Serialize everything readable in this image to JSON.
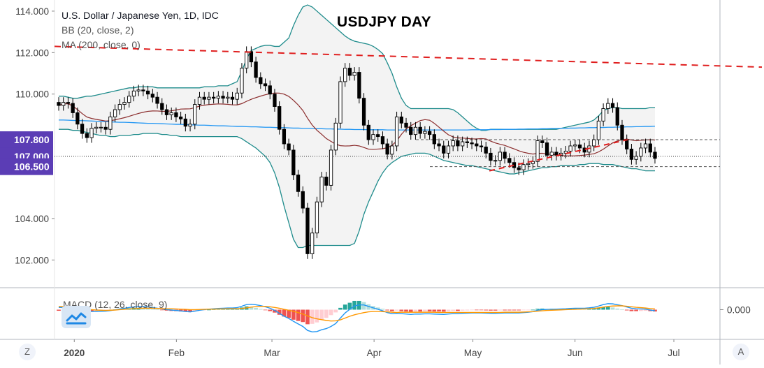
{
  "header": {
    "symbol_line": "U.S. Dollar / Japanese Yen, 1D, IDC",
    "bb_line": "BB (20, close, 2)",
    "ma_line": "MA (200, close, 0)",
    "title": "USDJPY DAY",
    "macd_line": "MACD (12, 26, close, 9)"
  },
  "buttons": {
    "left": "Z",
    "right": "A"
  },
  "colors": {
    "up_candle": "#ffffff",
    "down_candle": "#000000",
    "bb_band": "#1f8c8c",
    "bb_fill": "#f3f3f3",
    "bb_basis": "#8b2c2c",
    "ma200": "#2196f3",
    "trendline": "#e01e1e",
    "price_label_bg": "#5b3db5",
    "macd_line": "#2196f3",
    "signal_line": "#ff9800",
    "hist_up": "#26a69a",
    "hist_down": "#ef5350"
  },
  "chart_data": {
    "type": "candlestick",
    "title": "USDJPY DAY",
    "symbol": "U.S. Dollar / Japanese Yen, 1D, IDC",
    "ylim": [
      101,
      114.2
    ],
    "y_ticks": [
      "114.000",
      "112.000",
      "110.000",
      "107.800",
      "107.000",
      "106.500",
      "104.000",
      "102.000"
    ],
    "price_labels": [
      "107.800",
      "107.000",
      "106.500"
    ],
    "x_labels": [
      "2020",
      "Feb",
      "Mar",
      "Apr",
      "May",
      "Jun",
      "Jul"
    ],
    "x_start": "2019-12-26",
    "x_end": "2020-07-15",
    "x_label_dates": [
      "2020-01-01",
      "2020-02-01",
      "2020-03-01",
      "2020-04-01",
      "2020-05-01",
      "2020-06-01",
      "2020-07-01"
    ],
    "close": [
      109.45,
      109.6,
      109.55,
      109.1,
      108.55,
      108.1,
      107.9,
      108.35,
      108.4,
      108.4,
      108.3,
      108.9,
      109.25,
      109.5,
      109.6,
      109.9,
      110.15,
      110.2,
      110.15,
      110.0,
      109.85,
      109.55,
      109.25,
      109.0,
      109.1,
      108.9,
      108.8,
      108.45,
      108.55,
      109.5,
      109.85,
      109.75,
      109.85,
      109.8,
      109.9,
      109.8,
      109.85,
      109.75,
      110.05,
      111.25,
      112.05,
      111.55,
      110.8,
      110.5,
      110.4,
      110.0,
      109.4,
      108.3,
      107.6,
      107.3,
      106.1,
      105.3,
      104.5,
      102.3,
      103.3,
      104.8,
      106.0,
      105.6,
      107.3,
      108.6,
      110.6,
      111.25,
      110.9,
      111.05,
      109.8,
      108.5,
      107.8,
      108.05,
      107.95,
      107.6,
      107.1,
      107.5,
      108.9,
      108.6,
      108.4,
      108.05,
      108.4,
      108.1,
      108.2,
      108.05,
      107.6,
      107.5,
      107.15,
      107.5,
      107.75,
      107.5,
      107.7,
      107.65,
      107.6,
      107.5,
      107.45,
      107.15,
      106.8,
      106.8,
      107.2,
      106.9,
      106.7,
      106.45,
      106.35,
      106.6,
      106.65,
      106.75,
      107.75,
      107.65,
      107.05,
      107.2,
      107.05,
      107.15,
      107.25,
      107.5,
      107.55,
      107.4,
      107.2,
      107.5,
      107.8,
      108.7,
      109.3,
      109.55,
      109.35,
      108.5,
      107.8,
      107.35,
      106.85,
      107.0,
      107.4,
      107.6,
      107.2,
      106.9
    ],
    "bb_upper": [
      109.9,
      109.9,
      109.85,
      109.8,
      109.8,
      109.85,
      109.9,
      109.9,
      109.95,
      110.0,
      110.05,
      110.1,
      110.15,
      110.2,
      110.25,
      110.3,
      110.3,
      110.35,
      110.35,
      110.35,
      110.35,
      110.3,
      110.3,
      110.3,
      110.3,
      110.3,
      110.3,
      110.3,
      110.3,
      110.3,
      110.3,
      110.35,
      110.35,
      110.35,
      110.4,
      110.4,
      110.4,
      110.5,
      110.6,
      111.1,
      111.7,
      112.1,
      112.2,
      112.3,
      112.35,
      112.35,
      112.3,
      112.3,
      112.5,
      112.7,
      113.3,
      113.8,
      114.2,
      114.3,
      114.2,
      114.0,
      113.8,
      113.6,
      113.4,
      113.2,
      113.0,
      112.8,
      112.65,
      112.55,
      112.5,
      112.45,
      112.4,
      112.3,
      112.15,
      111.95,
      111.5,
      111.0,
      110.35,
      109.8,
      109.45,
      109.3,
      109.3,
      109.3,
      109.3,
      109.3,
      109.3,
      109.3,
      109.3,
      109.3,
      109.25,
      109.1,
      108.9,
      108.7,
      108.5,
      108.35,
      108.25,
      108.25,
      108.3,
      108.3,
      108.3,
      108.3,
      108.3,
      108.3,
      108.3,
      108.3,
      108.3,
      108.3,
      108.3,
      108.3,
      108.3,
      108.3,
      108.3,
      108.35,
      108.4,
      108.45,
      108.5,
      108.55,
      108.6,
      108.65,
      108.75,
      108.95,
      109.2,
      109.3,
      109.35,
      109.35,
      109.3,
      109.3,
      109.3,
      109.3,
      109.3,
      109.3,
      109.35,
      109.35
    ],
    "bb_lower": [
      108.3,
      108.3,
      108.3,
      108.25,
      108.25,
      108.2,
      108.15,
      108.1,
      108.05,
      108.0,
      108.0,
      107.95,
      107.95,
      108.0,
      108.0,
      108.0,
      108.05,
      108.05,
      108.1,
      108.1,
      108.1,
      108.1,
      108.05,
      108.05,
      108.0,
      108.0,
      107.95,
      107.95,
      107.95,
      107.95,
      107.95,
      107.95,
      107.95,
      107.95,
      107.95,
      107.95,
      107.95,
      107.95,
      107.95,
      107.85,
      107.7,
      107.55,
      107.4,
      107.2,
      107.0,
      106.7,
      106.2,
      105.5,
      104.6,
      103.8,
      103.0,
      102.6,
      102.6,
      102.7,
      102.7,
      102.7,
      102.7,
      102.7,
      102.7,
      102.7,
      102.7,
      102.7,
      102.7,
      102.8,
      103.4,
      104.2,
      104.8,
      105.3,
      105.8,
      106.2,
      106.5,
      106.7,
      106.85,
      107.0,
      107.05,
      107.1,
      107.15,
      107.15,
      107.15,
      107.1,
      107.0,
      106.9,
      106.8,
      106.75,
      106.7,
      106.65,
      106.6,
      106.55,
      106.55,
      106.5,
      106.45,
      106.4,
      106.35,
      106.3,
      106.25,
      106.2,
      106.15,
      106.15,
      106.2,
      106.25,
      106.3,
      106.35,
      106.4,
      106.45,
      106.45,
      106.5,
      106.5,
      106.55,
      106.55,
      106.55,
      106.55,
      106.6,
      106.6,
      106.65,
      106.65,
      106.65,
      106.6,
      106.6,
      106.6,
      106.55,
      106.5,
      106.45,
      106.4,
      106.4,
      106.35,
      106.3,
      106.3,
      106.3
    ],
    "ma200": [
      108.75,
      108.75,
      108.74,
      108.73,
      108.72,
      108.72,
      108.71,
      108.7,
      108.69,
      108.68,
      108.67,
      108.66,
      108.65,
      108.64,
      108.64,
      108.63,
      108.62,
      108.61,
      108.6,
      108.59,
      108.59,
      108.58,
      108.57,
      108.56,
      108.55,
      108.54,
      108.54,
      108.53,
      108.52,
      108.51,
      108.5,
      108.5,
      108.49,
      108.48,
      108.47,
      108.47,
      108.46,
      108.45,
      108.44,
      108.44,
      108.43,
      108.42,
      108.42,
      108.41,
      108.4,
      108.4,
      108.39,
      108.38,
      108.38,
      108.37,
      108.36,
      108.36,
      108.35,
      108.35,
      108.34,
      108.33,
      108.33,
      108.32,
      108.32,
      108.31,
      108.31,
      108.3,
      108.3,
      108.29,
      108.29,
      108.29,
      108.28,
      108.28,
      108.28,
      108.28,
      108.27,
      108.27,
      108.27,
      108.27,
      108.27,
      108.27,
      108.27,
      108.27,
      108.27,
      108.27,
      108.27,
      108.27,
      108.27,
      108.27,
      108.27,
      108.27,
      108.27,
      108.27,
      108.28,
      108.28,
      108.28,
      108.28,
      108.29,
      108.29,
      108.29,
      108.3,
      108.3,
      108.3,
      108.31,
      108.31,
      108.32,
      108.32,
      108.32,
      108.33,
      108.33,
      108.34,
      108.34,
      108.35,
      108.35,
      108.36,
      108.36,
      108.37,
      108.37,
      108.38,
      108.38,
      108.39,
      108.39,
      108.4,
      108.4,
      108.41,
      108.41,
      108.42,
      108.42,
      108.43,
      108.43,
      108.44,
      108.44,
      108.45
    ],
    "trendline_down": {
      "from": [
        "2019-12-26",
        112.3
      ],
      "to": [
        "2020-07-15",
        111.3
      ]
    },
    "trendline_up": {
      "from": [
        "2020-05-06",
        106.3
      ],
      "to": [
        "2020-06-17",
        107.8
      ]
    },
    "levels": [
      107.8,
      107.0,
      106.5
    ],
    "macd": {
      "label": "MACD (12, 26, close, 9)",
      "y_tick": "0.000",
      "ylim": [
        -1.4,
        0.9
      ],
      "histogram": [
        -0.06,
        -0.05,
        -0.04,
        -0.03,
        -0.05,
        -0.08,
        -0.1,
        -0.1,
        -0.08,
        -0.06,
        -0.04,
        -0.02,
        0.01,
        0.04,
        0.06,
        0.08,
        0.1,
        0.1,
        0.09,
        0.07,
        0.04,
        0.01,
        -0.02,
        -0.05,
        -0.07,
        -0.08,
        -0.1,
        -0.12,
        -0.12,
        -0.08,
        -0.04,
        -0.02,
        0.0,
        0.02,
        0.03,
        0.04,
        0.04,
        0.04,
        0.06,
        0.12,
        0.18,
        0.16,
        0.1,
        0.04,
        -0.02,
        -0.08,
        -0.16,
        -0.28,
        -0.38,
        -0.45,
        -0.55,
        -0.62,
        -0.68,
        -0.8,
        -0.78,
        -0.7,
        -0.55,
        -0.45,
        -0.3,
        -0.15,
        0.1,
        0.28,
        0.38,
        0.48,
        0.48,
        0.42,
        0.3,
        0.2,
        0.12,
        0.05,
        -0.04,
        -0.08,
        -0.05,
        -0.08,
        -0.1,
        -0.12,
        -0.1,
        -0.1,
        -0.09,
        -0.09,
        -0.1,
        -0.1,
        -0.11,
        -0.09,
        -0.07,
        -0.07,
        -0.05,
        -0.04,
        -0.03,
        -0.03,
        -0.03,
        -0.04,
        -0.05,
        -0.05,
        -0.04,
        -0.04,
        -0.04,
        -0.04,
        -0.04,
        -0.03,
        -0.02,
        0.0,
        0.05,
        0.06,
        0.05,
        0.05,
        0.05,
        0.05,
        0.05,
        0.06,
        0.06,
        0.05,
        0.04,
        0.05,
        0.06,
        0.1,
        0.14,
        0.15,
        0.12,
        0.06,
        0.01,
        -0.04,
        -0.08,
        -0.08,
        -0.07,
        -0.06,
        -0.08,
        -0.1
      ],
      "macd_line": [
        0.12,
        0.12,
        0.11,
        0.09,
        0.05,
        -0.02,
        -0.08,
        -0.1,
        -0.1,
        -0.09,
        -0.08,
        -0.05,
        -0.01,
        0.04,
        0.08,
        0.12,
        0.15,
        0.17,
        0.17,
        0.15,
        0.12,
        0.08,
        0.04,
        0.0,
        -0.02,
        -0.04,
        -0.07,
        -0.1,
        -0.12,
        -0.08,
        -0.03,
        0.0,
        0.03,
        0.05,
        0.07,
        0.08,
        0.09,
        0.09,
        0.11,
        0.19,
        0.28,
        0.3,
        0.27,
        0.22,
        0.16,
        0.08,
        -0.04,
        -0.2,
        -0.36,
        -0.48,
        -0.64,
        -0.78,
        -0.92,
        -1.14,
        -1.22,
        -1.2,
        -1.1,
        -1.04,
        -0.92,
        -0.76,
        -0.46,
        -0.18,
        0.02,
        0.2,
        0.26,
        0.26,
        0.18,
        0.1,
        0.02,
        -0.06,
        -0.16,
        -0.22,
        -0.2,
        -0.22,
        -0.24,
        -0.26,
        -0.24,
        -0.24,
        -0.23,
        -0.23,
        -0.24,
        -0.25,
        -0.26,
        -0.24,
        -0.22,
        -0.22,
        -0.2,
        -0.19,
        -0.18,
        -0.18,
        -0.18,
        -0.19,
        -0.2,
        -0.2,
        -0.19,
        -0.18,
        -0.18,
        -0.18,
        -0.18,
        -0.16,
        -0.14,
        -0.11,
        -0.03,
        0.0,
        0.01,
        0.02,
        0.03,
        0.04,
        0.05,
        0.07,
        0.08,
        0.08,
        0.08,
        0.1,
        0.13,
        0.2,
        0.28,
        0.33,
        0.32,
        0.27,
        0.22,
        0.15,
        0.08,
        0.05,
        0.04,
        0.03,
        -0.02,
        -0.06
      ],
      "signal_line": [
        0.18,
        0.17,
        0.15,
        0.12,
        0.1,
        0.06,
        0.02,
        0.0,
        -0.02,
        -0.03,
        -0.04,
        -0.03,
        -0.02,
        0.0,
        0.02,
        0.04,
        0.05,
        0.07,
        0.08,
        0.08,
        0.08,
        0.07,
        0.06,
        0.05,
        0.05,
        0.04,
        0.03,
        0.02,
        0.0,
        0.0,
        0.01,
        0.02,
        0.03,
        0.03,
        0.04,
        0.04,
        0.05,
        0.05,
        0.05,
        0.07,
        0.1,
        0.14,
        0.17,
        0.18,
        0.18,
        0.16,
        0.12,
        0.08,
        0.02,
        -0.03,
        -0.09,
        -0.16,
        -0.24,
        -0.34,
        -0.44,
        -0.5,
        -0.55,
        -0.59,
        -0.62,
        -0.61,
        -0.56,
        -0.46,
        -0.36,
        -0.28,
        -0.22,
        -0.16,
        -0.12,
        -0.1,
        -0.1,
        -0.11,
        -0.12,
        -0.14,
        -0.15,
        -0.14,
        -0.14,
        -0.14,
        -0.14,
        -0.14,
        -0.14,
        -0.14,
        -0.14,
        -0.15,
        -0.15,
        -0.15,
        -0.15,
        -0.15,
        -0.15,
        -0.15,
        -0.15,
        -0.15,
        -0.15,
        -0.15,
        -0.15,
        -0.15,
        -0.15,
        -0.14,
        -0.14,
        -0.14,
        -0.14,
        -0.13,
        -0.12,
        -0.11,
        -0.08,
        -0.06,
        -0.04,
        -0.03,
        -0.02,
        -0.01,
        0.0,
        0.01,
        0.02,
        0.03,
        0.04,
        0.05,
        0.07,
        0.1,
        0.14,
        0.18,
        0.2,
        0.21,
        0.21,
        0.19,
        0.16,
        0.13,
        0.11,
        0.09,
        0.06,
        0.04
      ]
    }
  }
}
